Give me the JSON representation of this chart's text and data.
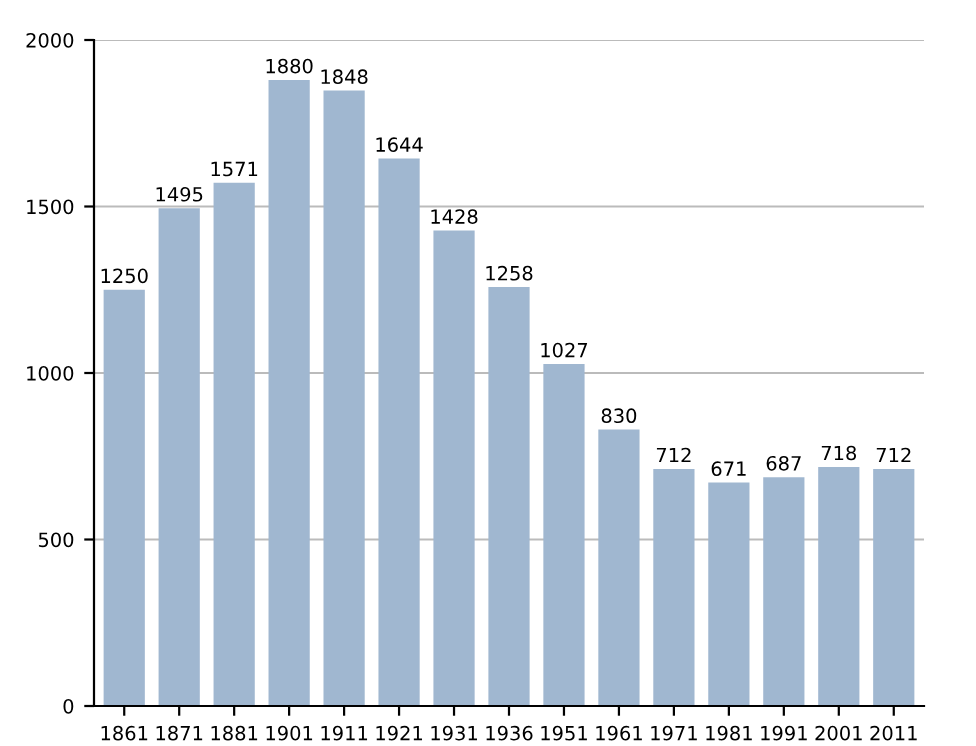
{
  "chart_data": {
    "type": "bar",
    "categories": [
      "1861",
      "1871",
      "1881",
      "1901",
      "1911",
      "1921",
      "1931",
      "1936",
      "1951",
      "1961",
      "1971",
      "1981",
      "1991",
      "2001",
      "2011"
    ],
    "values": [
      1250,
      1495,
      1571,
      1880,
      1848,
      1644,
      1428,
      1258,
      1027,
      830,
      712,
      671,
      687,
      718,
      712
    ],
    "color": "#a0b7d0",
    "ylim": [
      0,
      2000
    ],
    "yticks": [
      0,
      500,
      1000,
      1500,
      2000
    ],
    "grid": "y",
    "data_labels": true
  }
}
